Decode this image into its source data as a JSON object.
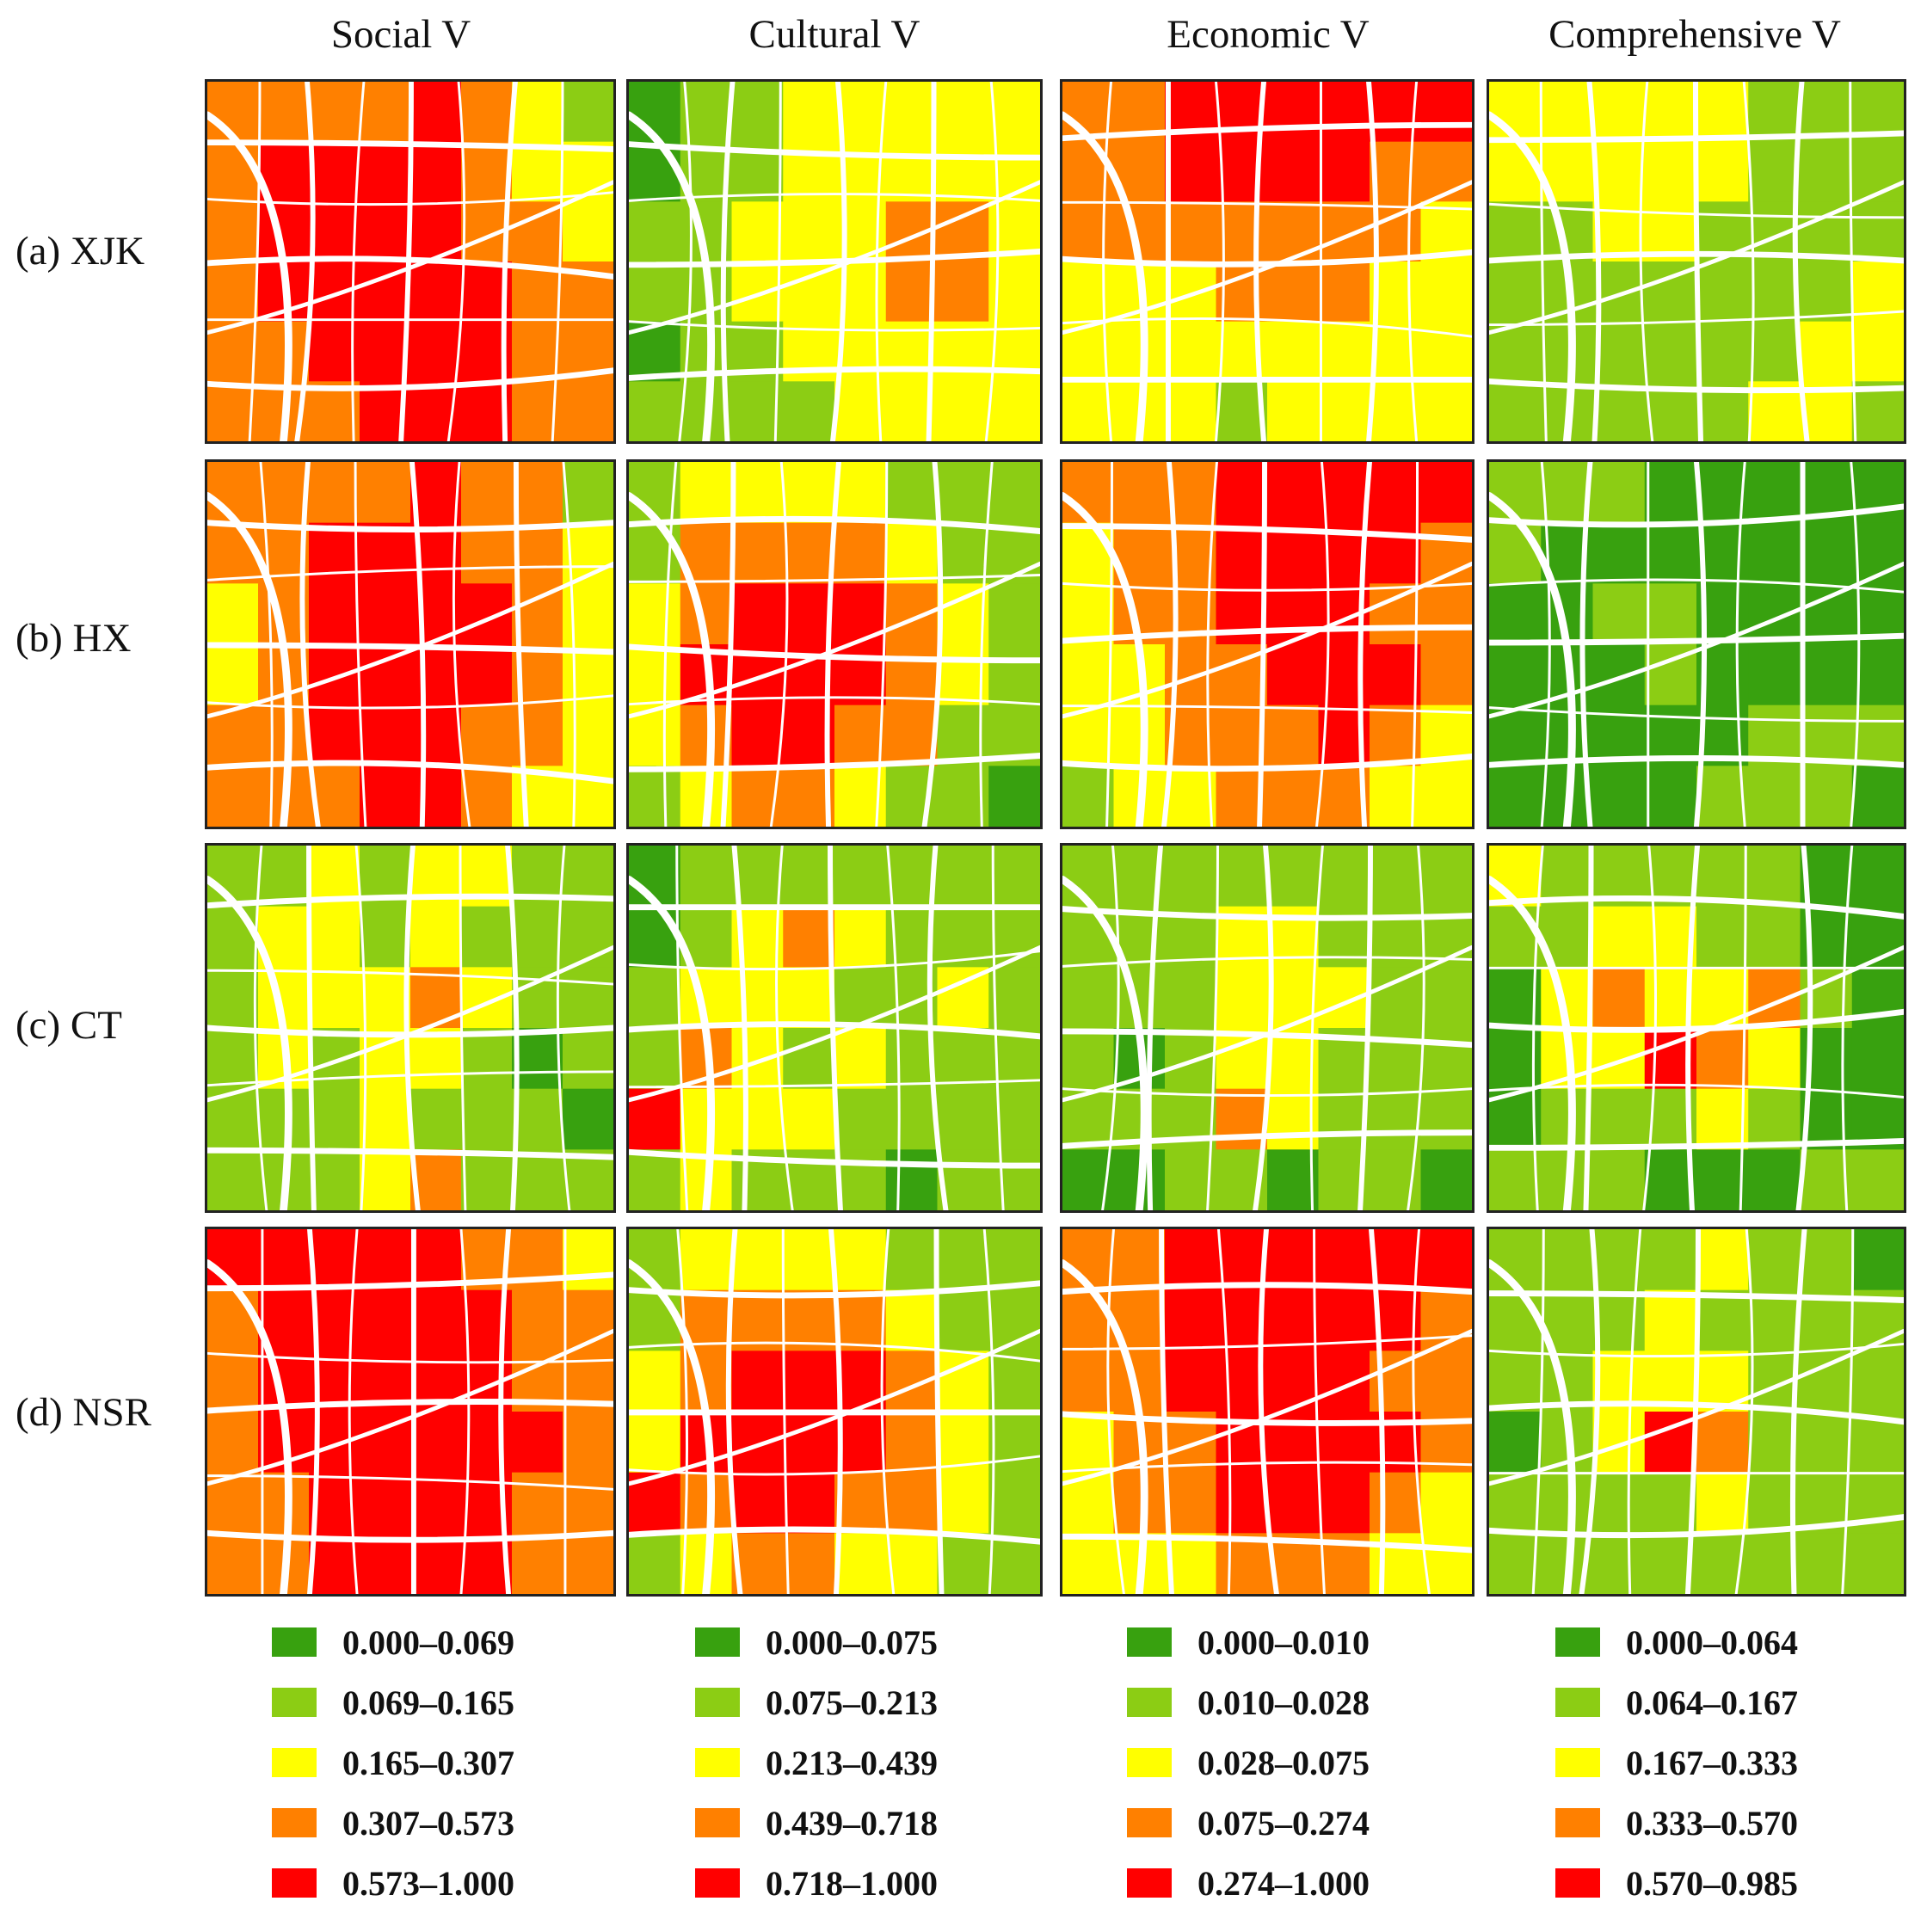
{
  "columns": [
    "Social V",
    "Cultural V",
    "Economic V",
    "Comprehensive V"
  ],
  "rows": [
    "(a) XJK",
    "(b) HX",
    "(c) CT",
    "(d) NSR"
  ],
  "colors": {
    "c1": "#38a10f",
    "c2": "#8ccd14",
    "c3": "#ffff00",
    "c4": "#ff8000",
    "c5": "#ff0000"
  },
  "legends": [
    {
      "items": [
        "0.000–0.069",
        "0.069–0.165",
        "0.165–0.307",
        "0.307–0.573",
        "0.573–1.000"
      ]
    },
    {
      "items": [
        "0.000–0.075",
        "0.075–0.213",
        "0.213–0.439",
        "0.439–0.718",
        "0.718–1.000"
      ]
    },
    {
      "items": [
        "0.000–0.010",
        "0.010–0.028",
        "0.028–0.075",
        "0.075–0.274",
        "0.274–1.000"
      ]
    },
    {
      "items": [
        "0.000–0.064",
        "0.064–0.167",
        "0.167–0.333",
        "0.333–0.570",
        "0.570–0.985"
      ]
    }
  ],
  "maps": [
    [
      [
        4,
        4,
        4,
        4,
        5,
        4,
        3,
        2,
        4,
        5,
        5,
        5,
        5,
        4,
        3,
        3,
        4,
        5,
        5,
        5,
        5,
        4,
        4,
        3,
        4,
        5,
        5,
        5,
        5,
        5,
        4,
        4,
        4,
        4,
        5,
        5,
        5,
        5,
        4,
        4,
        4,
        4,
        4,
        5,
        5,
        5,
        4,
        4
      ],
      [
        4,
        4,
        4,
        4,
        5,
        4,
        4,
        2,
        4,
        4,
        5,
        5,
        5,
        4,
        4,
        3,
        3,
        4,
        5,
        5,
        5,
        5,
        4,
        3,
        3,
        4,
        5,
        5,
        5,
        5,
        4,
        3,
        4,
        4,
        5,
        5,
        5,
        4,
        4,
        3,
        4,
        4,
        4,
        5,
        5,
        4,
        3,
        3
      ],
      [
        2,
        2,
        3,
        2,
        3,
        3,
        2,
        2,
        2,
        3,
        3,
        2,
        3,
        2,
        2,
        2,
        2,
        3,
        3,
        3,
        4,
        3,
        2,
        2,
        2,
        3,
        2,
        3,
        3,
        2,
        1,
        2,
        2,
        2,
        2,
        3,
        2,
        2,
        2,
        1,
        2,
        2,
        2,
        3,
        4,
        2,
        2,
        2
      ],
      [
        5,
        5,
        5,
        5,
        5,
        4,
        4,
        3,
        4,
        5,
        5,
        5,
        5,
        5,
        4,
        4,
        4,
        5,
        5,
        5,
        5,
        5,
        4,
        4,
        4,
        5,
        5,
        5,
        5,
        5,
        5,
        4,
        4,
        4,
        5,
        5,
        5,
        5,
        4,
        4,
        4,
        4,
        5,
        5,
        5,
        5,
        4,
        4
      ]
    ],
    [
      [
        1,
        2,
        2,
        3,
        3,
        3,
        3,
        3,
        1,
        2,
        2,
        3,
        3,
        3,
        3,
        3,
        2,
        2,
        3,
        3,
        3,
        4,
        4,
        3,
        2,
        2,
        3,
        3,
        3,
        4,
        4,
        3,
        1,
        2,
        2,
        3,
        3,
        3,
        3,
        3,
        2,
        2,
        2,
        2,
        3,
        3,
        3,
        3
      ],
      [
        2,
        3,
        3,
        3,
        3,
        2,
        2,
        2,
        2,
        4,
        4,
        4,
        4,
        3,
        2,
        2,
        3,
        4,
        5,
        5,
        5,
        4,
        3,
        2,
        3,
        5,
        5,
        5,
        5,
        4,
        3,
        2,
        3,
        4,
        5,
        5,
        4,
        4,
        2,
        2,
        2,
        3,
        4,
        4,
        3,
        2,
        2,
        1
      ],
      [
        1,
        2,
        2,
        2,
        2,
        2,
        2,
        2,
        1,
        2,
        3,
        4,
        3,
        2,
        2,
        2,
        2,
        3,
        3,
        3,
        2,
        2,
        3,
        2,
        2,
        4,
        3,
        2,
        3,
        2,
        2,
        2,
        5,
        3,
        3,
        3,
        2,
        2,
        2,
        2,
        2,
        3,
        2,
        2,
        2,
        1,
        2,
        2
      ],
      [
        2,
        3,
        3,
        3,
        3,
        2,
        2,
        2,
        2,
        4,
        4,
        4,
        4,
        3,
        2,
        2,
        3,
        4,
        5,
        5,
        5,
        4,
        3,
        2,
        3,
        5,
        5,
        5,
        5,
        4,
        3,
        2,
        5,
        4,
        5,
        5,
        4,
        4,
        3,
        2,
        2,
        3,
        4,
        4,
        3,
        3,
        2,
        2
      ]
    ],
    [
      [
        4,
        4,
        5,
        5,
        5,
        5,
        5,
        5,
        4,
        4,
        5,
        5,
        5,
        5,
        4,
        4,
        4,
        4,
        4,
        4,
        4,
        4,
        4,
        3,
        3,
        3,
        3,
        4,
        4,
        4,
        3,
        3,
        3,
        3,
        3,
        3,
        3,
        3,
        3,
        3,
        3,
        3,
        3,
        2,
        3,
        3,
        3,
        3
      ],
      [
        4,
        4,
        4,
        5,
        5,
        5,
        5,
        5,
        3,
        4,
        4,
        5,
        5,
        5,
        5,
        4,
        3,
        4,
        4,
        5,
        5,
        5,
        4,
        4,
        3,
        3,
        4,
        4,
        5,
        5,
        5,
        4,
        3,
        3,
        4,
        4,
        4,
        5,
        4,
        3,
        2,
        3,
        3,
        4,
        4,
        4,
        3,
        3
      ],
      [
        2,
        2,
        2,
        2,
        2,
        2,
        2,
        2,
        2,
        2,
        2,
        3,
        3,
        2,
        2,
        2,
        2,
        2,
        2,
        3,
        3,
        3,
        2,
        2,
        2,
        1,
        2,
        3,
        3,
        2,
        2,
        2,
        2,
        2,
        2,
        4,
        3,
        2,
        2,
        2,
        1,
        1,
        2,
        2,
        1,
        2,
        2,
        1
      ],
      [
        4,
        4,
        5,
        5,
        5,
        5,
        5,
        5,
        4,
        4,
        5,
        5,
        5,
        5,
        5,
        4,
        4,
        4,
        5,
        5,
        5,
        5,
        4,
        4,
        3,
        4,
        4,
        5,
        5,
        5,
        5,
        4,
        3,
        4,
        4,
        5,
        5,
        5,
        4,
        3,
        3,
        3,
        3,
        4,
        4,
        4,
        3,
        3
      ]
    ],
    [
      [
        3,
        3,
        3,
        3,
        3,
        2,
        2,
        2,
        3,
        3,
        3,
        3,
        3,
        2,
        2,
        2,
        2,
        2,
        3,
        3,
        2,
        2,
        2,
        2,
        2,
        2,
        2,
        2,
        2,
        2,
        2,
        3,
        2,
        2,
        2,
        2,
        2,
        2,
        3,
        3,
        2,
        2,
        2,
        2,
        2,
        3,
        3,
        2
      ],
      [
        2,
        2,
        2,
        1,
        1,
        1,
        1,
        1,
        2,
        1,
        1,
        1,
        1,
        1,
        1,
        1,
        1,
        1,
        2,
        2,
        1,
        1,
        1,
        1,
        1,
        1,
        1,
        2,
        1,
        1,
        1,
        1,
        1,
        1,
        1,
        1,
        1,
        2,
        2,
        2,
        1,
        1,
        1,
        1,
        2,
        2,
        2,
        1
      ],
      [
        3,
        2,
        2,
        2,
        2,
        2,
        1,
        1,
        2,
        2,
        3,
        3,
        2,
        2,
        1,
        1,
        1,
        3,
        4,
        3,
        3,
        4,
        2,
        1,
        1,
        3,
        3,
        5,
        4,
        3,
        1,
        1,
        1,
        2,
        2,
        2,
        3,
        2,
        1,
        1,
        2,
        2,
        2,
        1,
        1,
        1,
        2,
        2
      ],
      [
        2,
        2,
        2,
        2,
        3,
        2,
        2,
        1,
        2,
        2,
        2,
        3,
        2,
        2,
        2,
        2,
        2,
        2,
        3,
        3,
        3,
        2,
        2,
        2,
        1,
        2,
        3,
        5,
        4,
        2,
        2,
        2,
        2,
        2,
        2,
        2,
        3,
        2,
        2,
        2,
        2,
        2,
        2,
        2,
        2,
        2,
        2,
        2
      ]
    ]
  ]
}
